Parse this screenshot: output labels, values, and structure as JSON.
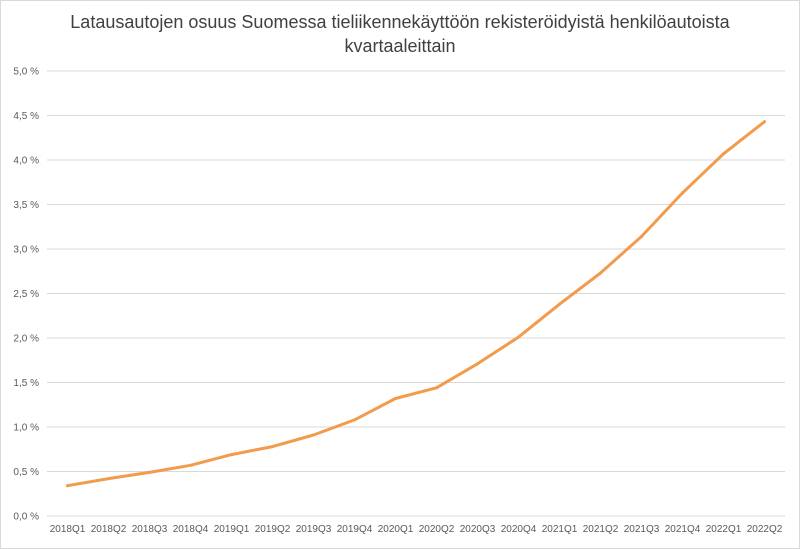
{
  "chart_data": {
    "type": "line",
    "title_lines": [
      "Latausautojen osuus Suomessa tieliikennekäyttöön rekisteröidyistä henkilöautoista",
      "kvartaaleittain"
    ],
    "xlabel": "",
    "ylabel": "",
    "categories": [
      "2018Q1",
      "2018Q2",
      "2018Q3",
      "2018Q4",
      "2019Q1",
      "2019Q2",
      "2019Q3",
      "2019Q4",
      "2020Q1",
      "2020Q2",
      "2020Q3",
      "2020Q4",
      "2021Q1",
      "2021Q2",
      "2021Q3",
      "2021Q4",
      "2022Q1",
      "2022Q2"
    ],
    "series": [
      {
        "values": [
          0.34,
          0.42,
          0.49,
          0.57,
          0.69,
          0.78,
          0.91,
          1.08,
          1.32,
          1.44,
          1.71,
          2.01,
          2.38,
          2.73,
          3.14,
          3.63,
          4.07,
          4.43
        ],
        "color": "#f19b4b"
      }
    ],
    "ylim": [
      0,
      5.0
    ],
    "yticks": [
      "0,0 %",
      "0,5 %",
      "1,0 %",
      "1,5 %",
      "2,0 %",
      "2,5 %",
      "3,0 %",
      "3,5 %",
      "4,0 %",
      "4,5 %",
      "5,0 %"
    ],
    "grid": true,
    "legend": "none",
    "gridColor": "#d9d9d9",
    "textColor": "#595959"
  }
}
